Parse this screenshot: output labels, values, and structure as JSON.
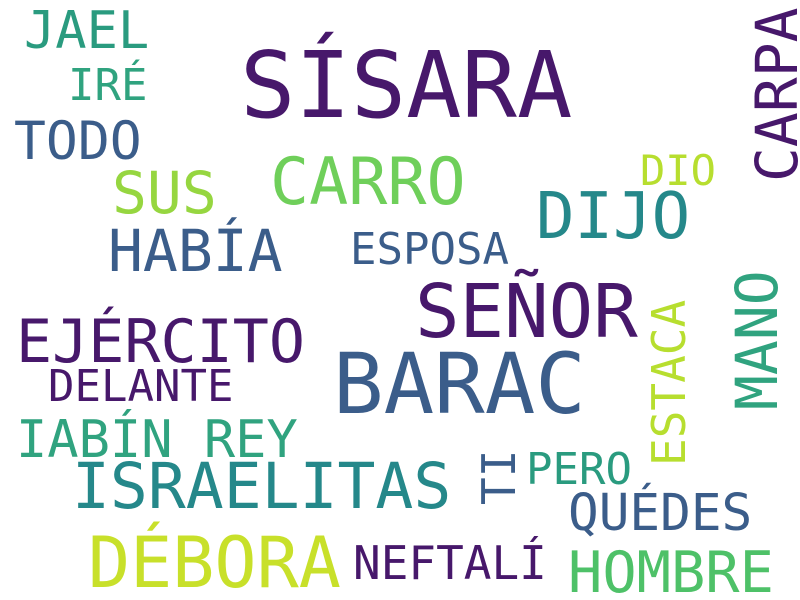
{
  "words": [
    {
      "text": "SÍSARA",
      "color": "#47186b"
    },
    {
      "text": "BARAC",
      "color": "#3b5d8a"
    },
    {
      "text": "SEÑOR",
      "color": "#47186b"
    },
    {
      "text": "DÉBORA",
      "color": "#c8e02a"
    },
    {
      "text": "ISRAELITAS",
      "color": "#25888a"
    },
    {
      "text": "CARRO",
      "color": "#6fcf5a"
    },
    {
      "text": "HABÍA",
      "color": "#3b5d8a"
    },
    {
      "text": "EJÉRCITO",
      "color": "#47186b"
    },
    {
      "text": "DIJO",
      "color": "#25888a"
    },
    {
      "text": "HOMBRE",
      "color": "#4ec168"
    },
    {
      "text": "QUÉDES",
      "color": "#3b5d8a"
    },
    {
      "text": "IABÍN REY",
      "color": "#30a37f"
    },
    {
      "text": "SUS",
      "color": "#96d640"
    },
    {
      "text": "JAEL",
      "color": "#2a9b7f"
    },
    {
      "text": "TODO",
      "color": "#3b5d8a"
    },
    {
      "text": "NEFTALÍ",
      "color": "#47186b"
    },
    {
      "text": "DELANTE",
      "color": "#47186b"
    },
    {
      "text": "ESPOSA",
      "color": "#3b5d8a"
    },
    {
      "text": "PERO",
      "color": "#2a9b7f"
    },
    {
      "text": "IRÉ",
      "color": "#30a37f"
    },
    {
      "text": "DIO",
      "color": "#b7de2f"
    },
    {
      "text": "CARPA",
      "color": "#47186b"
    },
    {
      "text": "MANO",
      "color": "#30a37f"
    },
    {
      "text": "ESTACA",
      "color": "#b7de2f"
    },
    {
      "text": "TI",
      "color": "#3b5d8a"
    }
  ]
}
